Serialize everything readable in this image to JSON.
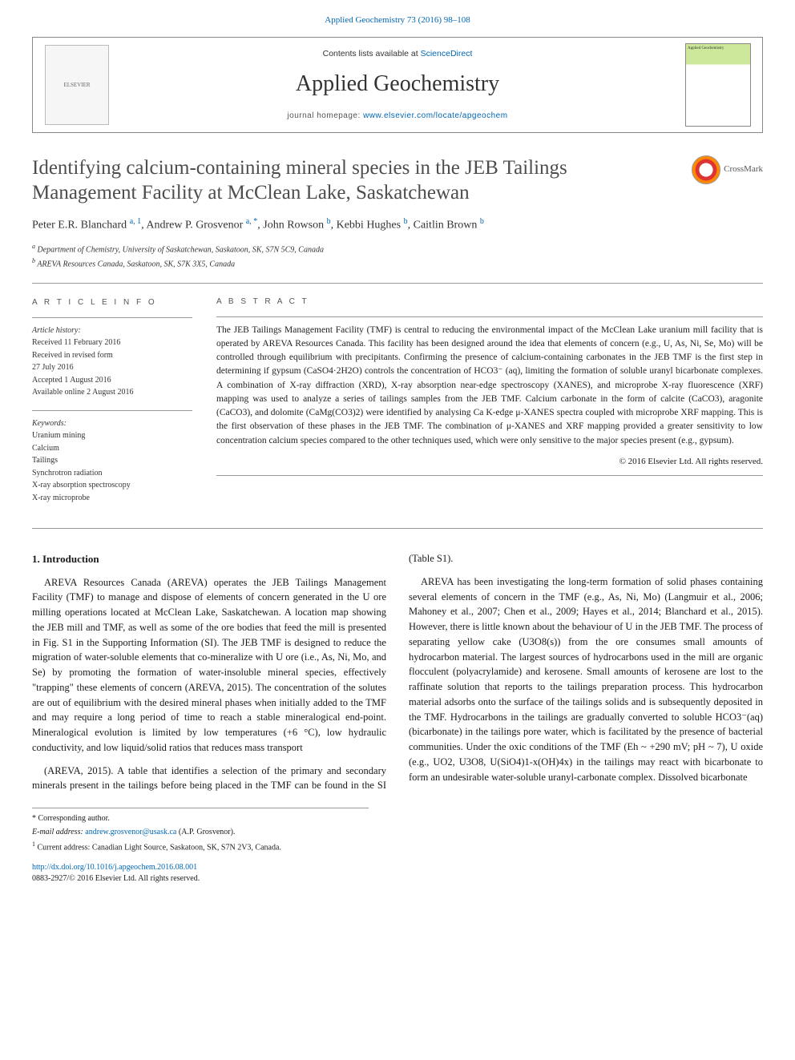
{
  "top_link": "Applied Geochemistry 73 (2016) 98–108",
  "banner": {
    "contents_prefix": "Contents lists available at ",
    "contents_link": "ScienceDirect",
    "journal": "Applied Geochemistry",
    "homepage_prefix": "journal homepage: ",
    "homepage_url": "www.elsevier.com/locate/apgeochem",
    "publisher_logo_alt": "ELSEVIER",
    "cover_alt": "Applied Geochemistry"
  },
  "crossmark_label": "CrossMark",
  "title": "Identifying calcium-containing mineral species in the JEB Tailings Management Facility at McClean Lake, Saskatchewan",
  "authors_html": "Peter E.R. Blanchard <sup>a, 1</sup>, Andrew P. Grosvenor <sup>a, *</sup>, John Rowson <sup>b</sup>, Kebbi Hughes <sup>b</sup>, Caitlin Brown <sup>b</sup>",
  "affiliations": [
    "a Department of Chemistry, University of Saskatchewan, Saskatoon, SK, S7N 5C9, Canada",
    "b AREVA Resources Canada, Saskatoon, SK, S7K 3X5, Canada"
  ],
  "article_info": {
    "heading": "A R T I C L E   I N F O",
    "history_label": "Article history:",
    "history": [
      "Received 11 February 2016",
      "Received in revised form",
      "27 July 2016",
      "Accepted 1 August 2016",
      "Available online 2 August 2016"
    ],
    "keywords_label": "Keywords:",
    "keywords": [
      "Uranium mining",
      "Calcium",
      "Tailings",
      "Synchrotron radiation",
      "X-ray absorption spectroscopy",
      "X-ray microprobe"
    ]
  },
  "abstract": {
    "heading": "A B S T R A C T",
    "text": "The JEB Tailings Management Facility (TMF) is central to reducing the environmental impact of the McClean Lake uranium mill facility that is operated by AREVA Resources Canada. This facility has been designed around the idea that elements of concern (e.g., U, As, Ni, Se, Mo) will be controlled through equilibrium with precipitants. Confirming the presence of calcium-containing carbonates in the JEB TMF is the first step in determining if gypsum (CaSO4·2H2O) controls the concentration of HCO3⁻ (aq), limiting the formation of soluble uranyl bicarbonate complexes. A combination of X-ray diffraction (XRD), X-ray absorption near-edge spectroscopy (XANES), and microprobe X-ray fluorescence (XRF) mapping was used to analyze a series of tailings samples from the JEB TMF. Calcium carbonate in the form of calcite (CaCO3), aragonite (CaCO3), and dolomite (CaMg(CO3)2) were identified by analysing Ca K-edge μ-XANES spectra coupled with microprobe XRF mapping. This is the first observation of these phases in the JEB TMF. The combination of μ-XANES and XRF mapping provided a greater sensitivity to low concentration calcium species compared to the other techniques used, which were only sensitive to the major species present (e.g., gypsum).",
    "copyright": "© 2016 Elsevier Ltd. All rights reserved."
  },
  "intro": {
    "heading": "1. Introduction",
    "p1": "AREVA Resources Canada (AREVA) operates the JEB Tailings Management Facility (TMF) to manage and dispose of elements of concern generated in the U ore milling operations located at McClean Lake, Saskatchewan. A location map showing the JEB mill and TMF, as well as some of the ore bodies that feed the mill is presented in Fig. S1 in the Supporting Information (SI). The JEB TMF is designed to reduce the migration of water-soluble elements that co-mineralize with U ore (i.e., As, Ni, Mo, and Se) by promoting the formation of water-insoluble mineral species, effectively \"trapping\" these elements of concern (AREVA, 2015). The concentration of the solutes are out of equilibrium with the desired mineral phases when initially added to the TMF and may require a long period of time to reach a stable mineralogical end-point. Mineralogical evolution is limited by low temperatures (+6 °C), low hydraulic conductivity, and low liquid/solid ratios that reduces mass transport",
    "p2_a": "(AREVA, 2015). A table that identifies a selection of the primary and secondary minerals present in the tailings before being placed in the TMF can be found in the SI (Table S1).",
    "p2_b": "AREVA has been investigating the long-term formation of solid phases containing several elements of concern in the TMF (e.g., As, Ni, Mo) (Langmuir et al., 2006; Mahoney et al., 2007; Chen et al., 2009; Hayes et al., 2014; Blanchard et al., 2015). However, there is little known about the behaviour of U in the JEB TMF. The process of separating yellow cake (U3O8(s)) from the ore consumes small amounts of hydrocarbon material. The largest sources of hydrocarbons used in the mill are organic flocculent (polyacrylamide) and kerosene. Small amounts of kerosene are lost to the raffinate solution that reports to the tailings preparation process. This hydrocarbon material adsorbs onto the surface of the tailings solids and is subsequently deposited in the TMF. Hydrocarbons in the tailings are gradually converted to soluble HCO3⁻(aq) (bicarbonate) in the tailings pore water, which is facilitated by the presence of bacterial communities. Under the oxic conditions of the TMF (Eh ~ +290 mV; pH ~ 7), U oxide (e.g., UO2, U3O8, U(SiO4)1-x(OH)4x) in the tailings may react with bicarbonate to form an undesirable water-soluble uranyl-carbonate complex. Dissolved bicarbonate"
  },
  "footnotes": {
    "corr": "* Corresponding author.",
    "email_label": "E-mail address: ",
    "email": "andrew.grosvenor@usask.ca",
    "email_suffix": " (A.P. Grosvenor).",
    "note1": "1 Current address: Canadian Light Source, Saskatoon, SK, S7N 2V3, Canada."
  },
  "doi": {
    "url": "http://dx.doi.org/10.1016/j.apgeochem.2016.08.001",
    "issn_line": "0883-2927/© 2016 Elsevier Ltd. All rights reserved."
  },
  "colors": {
    "link": "#0066b3",
    "title": "#4d4d4d",
    "rule": "#999999",
    "text": "#1a1a1a"
  }
}
